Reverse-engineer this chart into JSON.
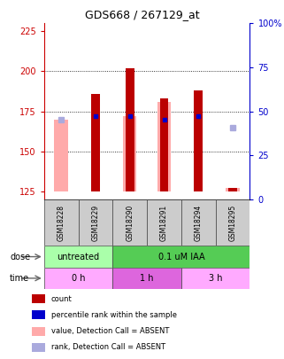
{
  "title": "GDS668 / 267129_at",
  "samples": [
    "GSM18228",
    "GSM18229",
    "GSM18290",
    "GSM18291",
    "GSM18294",
    "GSM18295"
  ],
  "ylim_left": [
    120,
    230
  ],
  "ylim_right": [
    0,
    100
  ],
  "yticks_left": [
    125,
    150,
    175,
    200,
    225
  ],
  "yticks_right": [
    0,
    25,
    50,
    75,
    100
  ],
  "yticklabels_right": [
    "0",
    "25",
    "50",
    "75",
    "100%"
  ],
  "bar_bottom": 125,
  "counts": [
    null,
    186,
    202,
    183,
    188,
    127
  ],
  "count_color": "#bb0000",
  "absent_values": [
    170,
    null,
    172,
    181,
    null,
    127
  ],
  "absent_value_color": "#ffaaaa",
  "percentile_ranks": [
    null,
    172,
    172,
    170,
    172,
    null
  ],
  "percentile_rank_color": "#0000cc",
  "absent_ranks": [
    170,
    null,
    null,
    null,
    null,
    165
  ],
  "absent_rank_color": "#aaaadd",
  "dose_groups": [
    {
      "label": "untreated",
      "start": 0,
      "end": 2,
      "color": "#aaffaa"
    },
    {
      "label": "0.1 uM IAA",
      "start": 2,
      "end": 6,
      "color": "#55cc55"
    }
  ],
  "time_groups": [
    {
      "label": "0 h",
      "start": 0,
      "end": 2,
      "color": "#ffaaff"
    },
    {
      "label": "1 h",
      "start": 2,
      "end": 4,
      "color": "#dd66dd"
    },
    {
      "label": "3 h",
      "start": 4,
      "end": 6,
      "color": "#ffaaff"
    }
  ],
  "legend_items": [
    {
      "color": "#bb0000",
      "label": "count"
    },
    {
      "color": "#0000cc",
      "label": "percentile rank within the sample"
    },
    {
      "color": "#ffaaaa",
      "label": "value, Detection Call = ABSENT"
    },
    {
      "color": "#aaaadd",
      "label": "rank, Detection Call = ABSENT"
    }
  ],
  "count_bar_width": 0.25,
  "absent_bar_width": 0.4,
  "title_fontsize": 9,
  "tick_fontsize": 7,
  "sample_fontsize": 5.5,
  "row_fontsize": 7,
  "legend_fontsize": 6,
  "left_tick_color": "#cc0000",
  "right_tick_color": "#0000cc",
  "bg_color": "#ffffff"
}
